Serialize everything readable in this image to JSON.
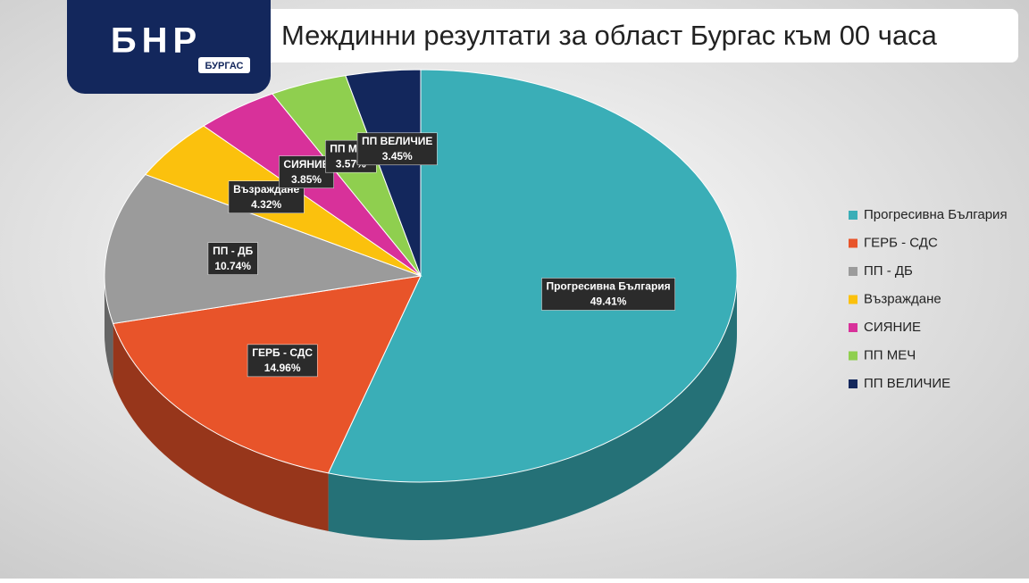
{
  "logo": {
    "text": "БНР",
    "subtitle": "БУРГАС"
  },
  "chart_data": {
    "type": "pie",
    "title": "Междинни резултати за област Бургас към 00 часа",
    "categories": [
      "Прогресивна България",
      "ГЕРБ - СДС",
      "ПП - ДБ",
      "Възраждане",
      "СИЯНИЕ",
      "ПП МЕЧ",
      "ПП ВЕЛИЧИЕ"
    ],
    "values": [
      49.41,
      14.96,
      10.74,
      4.32,
      3.85,
      3.57,
      3.45
    ],
    "value_labels": [
      "49.41%",
      "14.96%",
      "10.74%",
      "4.32%",
      "3.85%",
      "3.57%",
      "3.45%"
    ],
    "colors": [
      "#3aaeb7",
      "#e8542a",
      "#9b9b9b",
      "#fbc10d",
      "#d8319a",
      "#8fcf4f",
      "#13275c"
    ],
    "legend": "right"
  }
}
